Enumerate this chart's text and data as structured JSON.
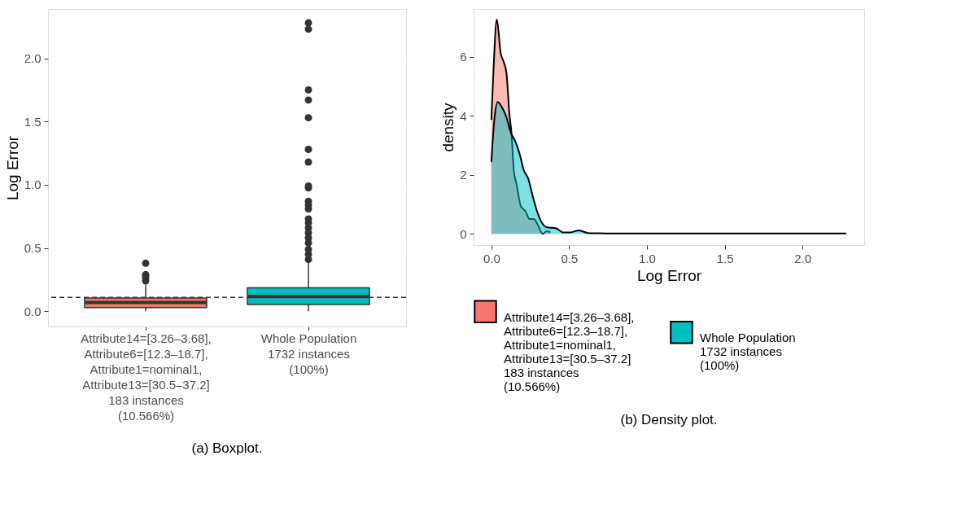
{
  "chart_data": [
    {
      "type": "box",
      "title": "(a) Boxplot.",
      "ylabel": "Log Error",
      "categories": [
        "Attribute14=[3.26–3.68],\nAttribute6=[12.3–18.7],\nAttribute1=nominal1,\nAttribute13=[30.5–37.2]\n183 instances\n(10.566%)",
        "Whole Population\n1732 instances\n(100%)"
      ],
      "colors": [
        "#f8766d",
        "#00bfc4"
      ],
      "boxes": [
        {
          "low": 0.0,
          "q1": 0.03,
          "median": 0.07,
          "q3": 0.105,
          "high": 0.21,
          "outliers": [
            0.24,
            0.26,
            0.28,
            0.29,
            0.38
          ]
        },
        {
          "low": 0.0,
          "q1": 0.053,
          "median": 0.116,
          "q3": 0.185,
          "high": 0.4,
          "outliers": [
            0.41,
            0.45,
            0.49,
            0.54,
            0.58,
            0.62,
            0.66,
            0.7,
            0.73,
            0.81,
            0.84,
            0.87,
            0.975,
            0.99,
            1.18,
            1.28,
            1.53,
            1.67,
            1.75,
            2.23,
            2.28
          ]
        }
      ],
      "ylim": [
        -0.12,
        2.39
      ],
      "yticks": [
        {
          "value": 0,
          "label": "0.0"
        },
        0.5,
        {
          "value": 1,
          "label": "1.0"
        },
        1.5,
        {
          "value": 2,
          "label": "2.0"
        }
      ],
      "grid": true,
      "legend": false,
      "ref_lines": [
        {
          "axis": "y",
          "value": 0.11,
          "line_style": "dashed",
          "color": "#333333"
        }
      ]
    },
    {
      "type": "area",
      "title": "(b) Density plot.",
      "xlabel": "Log Error",
      "ylabel": "density",
      "series": [
        {
          "name": "Attribute14=[3.26–3.68],\nAttribute6=[12.3–18.7],\nAttribute1=nominal1,\nAttribute13=[30.5–37.2]\n183 instances\n(10.566%)",
          "color": "#f8766d",
          "x": [
            0,
            0.013,
            0.035,
            0.06,
            0.078,
            0.097,
            0.116,
            0.13,
            0.144,
            0.162,
            0.19,
            0.218,
            0.246,
            0.274,
            0.293,
            0.33,
            0.355,
            0.38
          ],
          "values": [
            3.86,
            5.46,
            7.26,
            6.12,
            5.84,
            5.46,
            4.05,
            3.38,
            2.15,
            1.68,
            0.93,
            0.78,
            0.5,
            0.5,
            0.36,
            0.0,
            0.09,
            0.05
          ]
        },
        {
          "name": "Whole Population\n1732 instances\n(100%)",
          "color": "#00bfc4",
          "x": [
            0,
            0.019,
            0.041,
            0.069,
            0.097,
            0.125,
            0.153,
            0.181,
            0.209,
            0.237,
            0.265,
            0.293,
            0.321,
            0.358,
            0.414,
            0.461,
            0.507,
            0.563,
            0.619,
            0.694,
            0.843,
            1.0,
            1.5,
            2.0,
            2.28
          ],
          "values": [
            2.44,
            3.86,
            4.47,
            4.28,
            3.95,
            3.43,
            3.15,
            2.72,
            2.15,
            1.87,
            1.3,
            0.78,
            0.41,
            0.22,
            0.19,
            0.05,
            0.05,
            0.12,
            0.03,
            0.02,
            0.01,
            0.01,
            0.01,
            0.01,
            0.01
          ]
        }
      ],
      "xlim": [
        -0.114,
        2.396
      ],
      "xticks": [
        {
          "value": 0,
          "label": "0.0"
        },
        0.5,
        {
          "value": 1,
          "label": "1.0"
        },
        1.5,
        {
          "value": 2,
          "label": "2.0"
        }
      ],
      "ylim": [
        -0.38,
        7.62
      ],
      "yticks": [
        0,
        2,
        4,
        6
      ],
      "grid": true,
      "legend": "bottom"
    }
  ]
}
